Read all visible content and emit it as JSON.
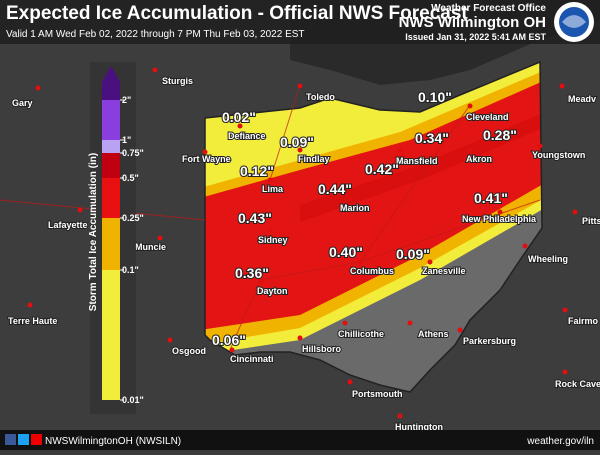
{
  "header": {
    "title": "Expected Ice Accumulation - Official NWS Forecast",
    "valid": "Valid 1 AM Wed Feb 02, 2022 through 7 PM Thu Feb 03, 2022 EST",
    "office_label": "Weather Forecast Office",
    "office": "NWS Wilmington OH",
    "issued": "Issued Jan 31, 2022 5:41 AM EST"
  },
  "legend": {
    "title": "Storm Total Ice Accumulation (in)",
    "labels": [
      "2\"",
      "1\"",
      "0.75\"",
      "0.5\"",
      "0.25\"",
      "0.1\"",
      "0.01\""
    ]
  },
  "amounts": [
    "0.02\"",
    "0.09\"",
    "0.12\"",
    "0.10\"",
    "0.34\"",
    "0.28\"",
    "0.44\"",
    "0.42\"",
    "0.43\"",
    "0.41\"",
    "0.36\"",
    "0.40\"",
    "0.09\"",
    "0.06\""
  ],
  "cities": [
    "Gary",
    "Sturgis",
    "Toledo",
    "Meadv",
    "Defiance",
    "Findlay",
    "Fort Wayne",
    "Lima",
    "Cleveland",
    "Akron",
    "Youngstown",
    "Mansfield",
    "Marion",
    "Lafayette",
    "Muncie",
    "Sidney",
    "New Philadelphia",
    "Pitts",
    "Columbus",
    "Zanesville",
    "Wheeling",
    "Dayton",
    "Terre Haute",
    "Chillicothe",
    "Athens",
    "Parkersburg",
    "Fairmo",
    "Osgood",
    "Cincinnati",
    "Hillsboro",
    "Portsmouth",
    "Rock Cave",
    "Huntington"
  ],
  "footer": {
    "social": "NWSWilmingtonOH (NWSILN)",
    "url": "weather.gov/iln"
  }
}
